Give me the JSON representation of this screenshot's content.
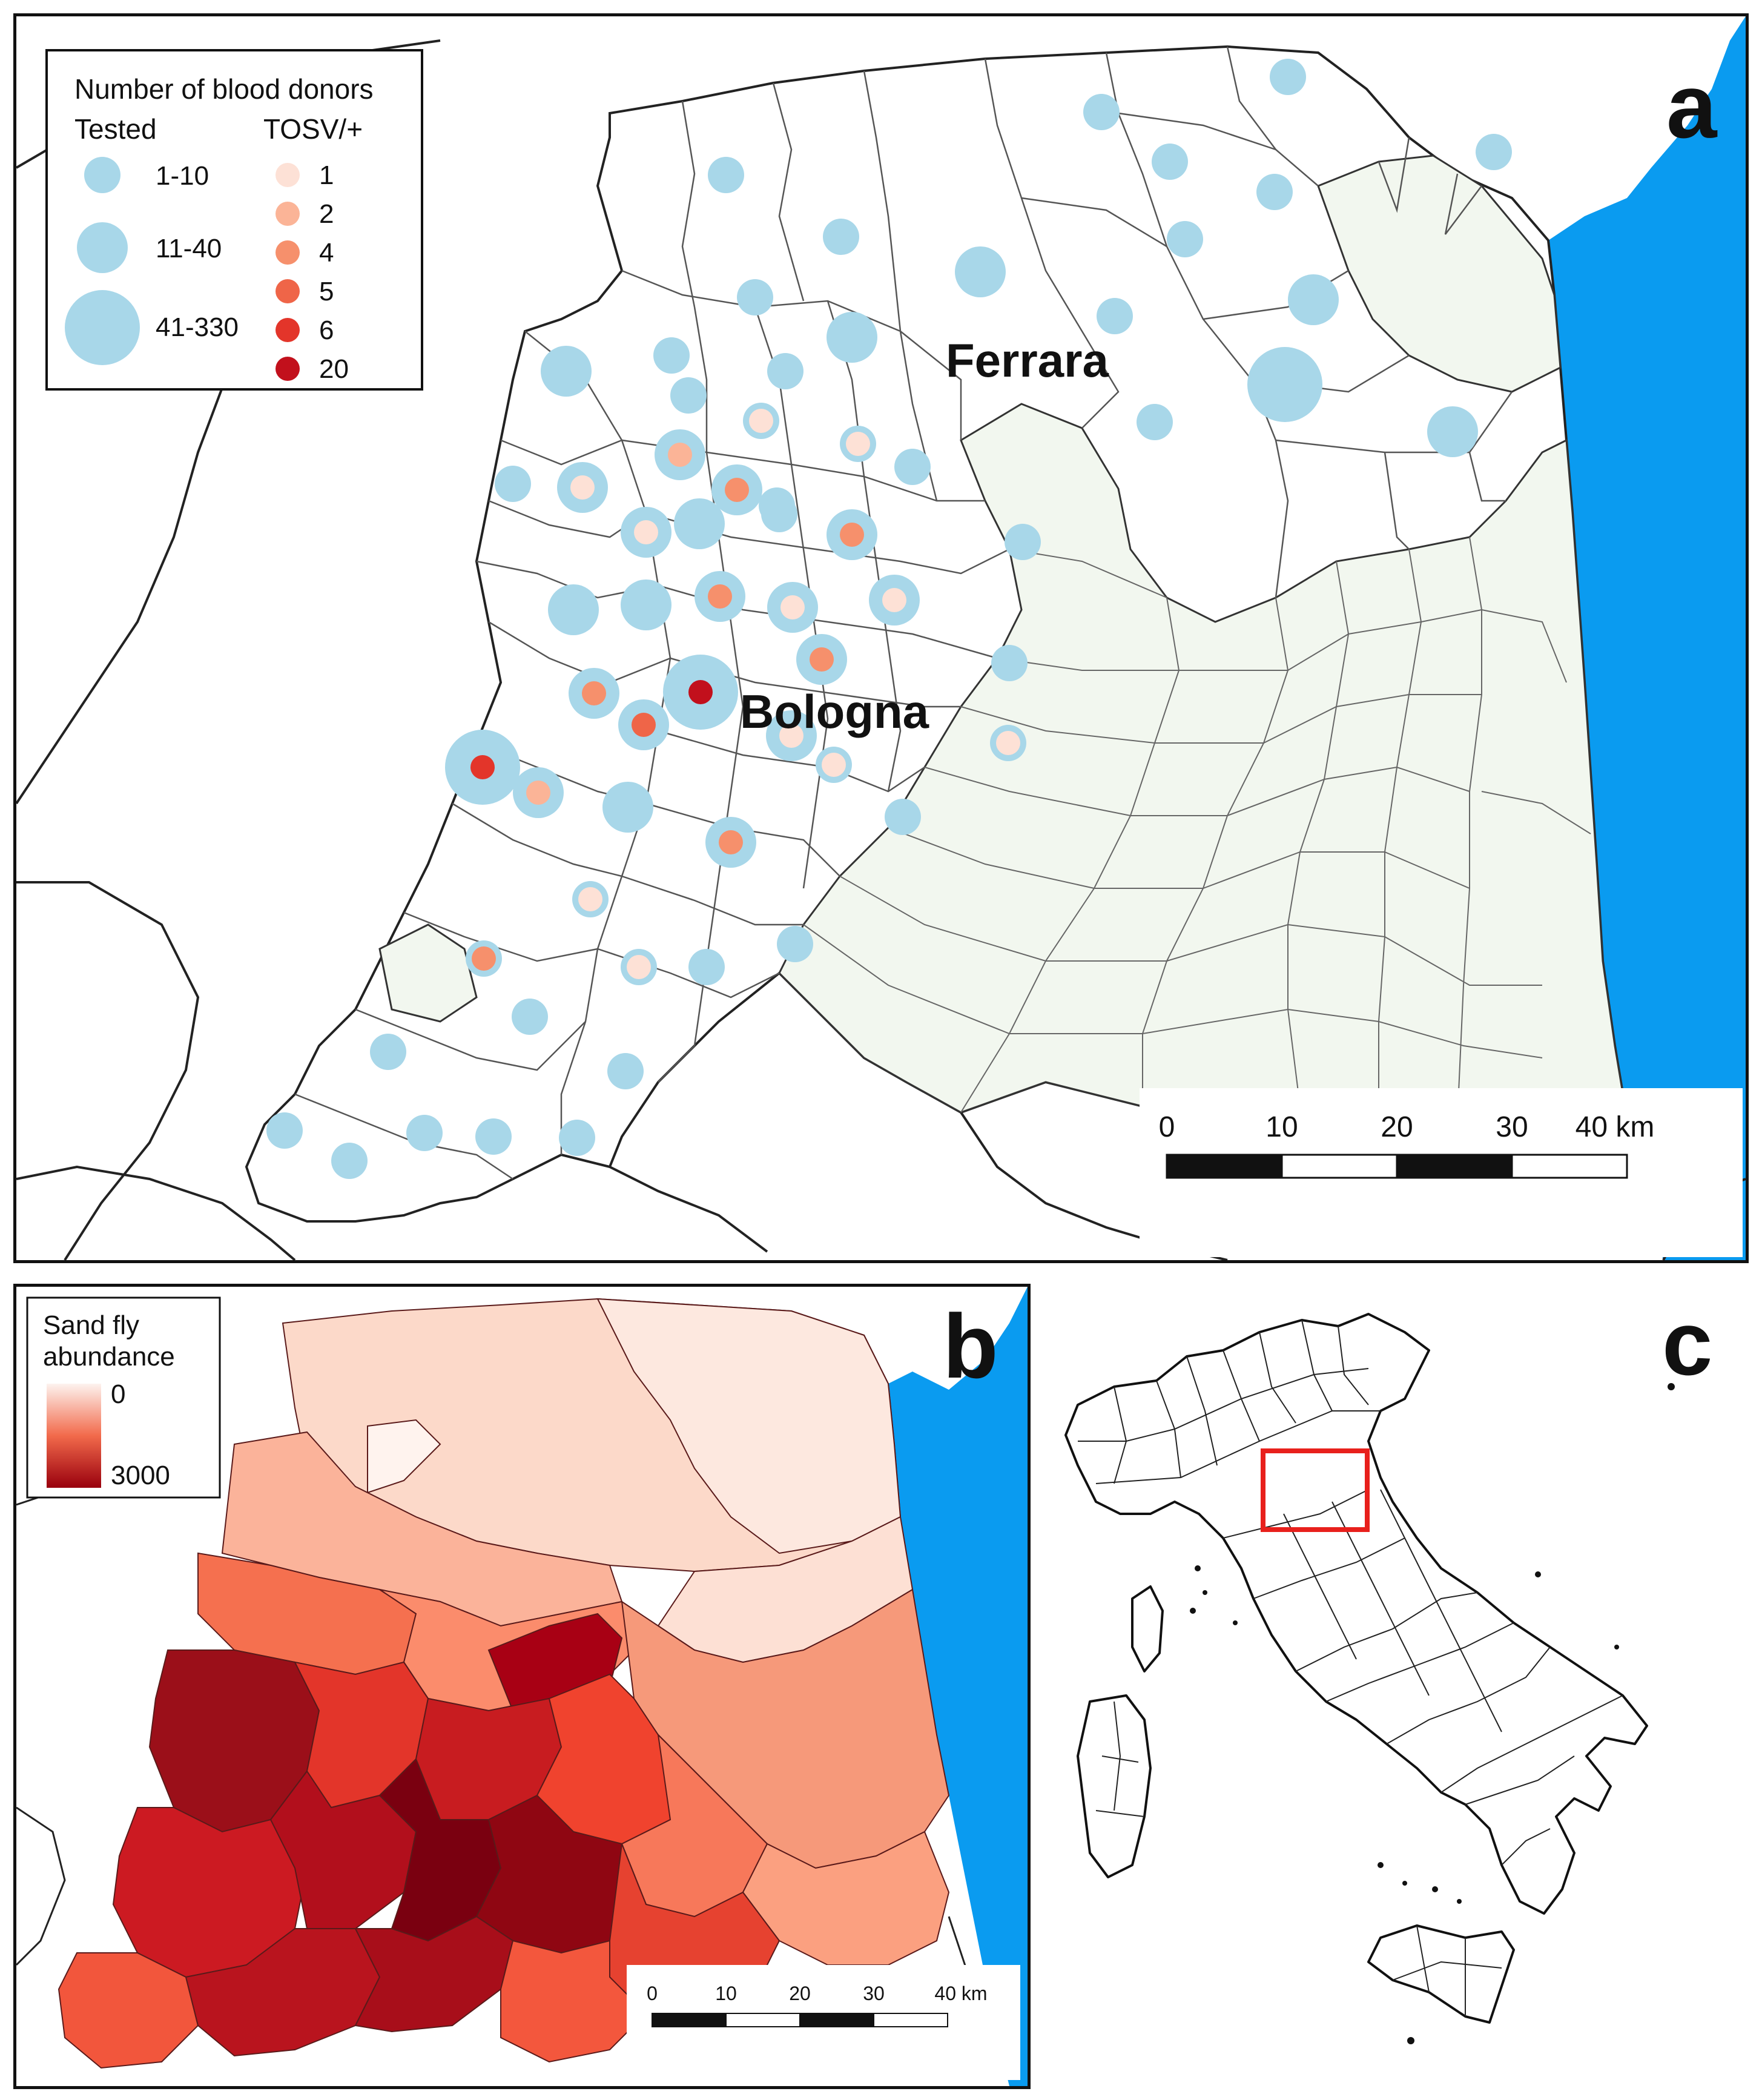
{
  "colors": {
    "sea": "#0a9bf0",
    "donor_circle": "#a8d7e9",
    "lowland_area": "#f2f7ef",
    "border": "#333333",
    "inset_box": "#e8201c",
    "tosv_scale": [
      "#fde1d6",
      "#fbb497",
      "#f6906c",
      "#ef6548",
      "#e3352a",
      "#c2101c"
    ],
    "abundance_low": "#fdf3ef",
    "abundance_high": "#99000d"
  },
  "panel_a": {
    "label": "a",
    "legend": {
      "title": "Number of blood donors",
      "tested_heading": "Tested",
      "tosv_heading": "TOSV/+",
      "tested_classes": [
        "1-10",
        "11-40",
        "41-330"
      ],
      "tosv_classes": [
        "1",
        "2",
        "4",
        "5",
        "6",
        "20"
      ]
    },
    "cities": [
      "Ferrara",
      "Bologna"
    ],
    "scalebar": {
      "ticks": [
        "0",
        "10",
        "20",
        "30",
        "40 km"
      ]
    }
  },
  "panel_b": {
    "label": "b",
    "legend": {
      "title_line1": "Sand fly",
      "title_line2": "abundance",
      "min_label": "0",
      "max_label": "3000"
    },
    "scalebar": {
      "ticks": [
        "0",
        "10",
        "20",
        "30",
        "40 km"
      ]
    }
  },
  "panel_c": {
    "label": "c"
  }
}
